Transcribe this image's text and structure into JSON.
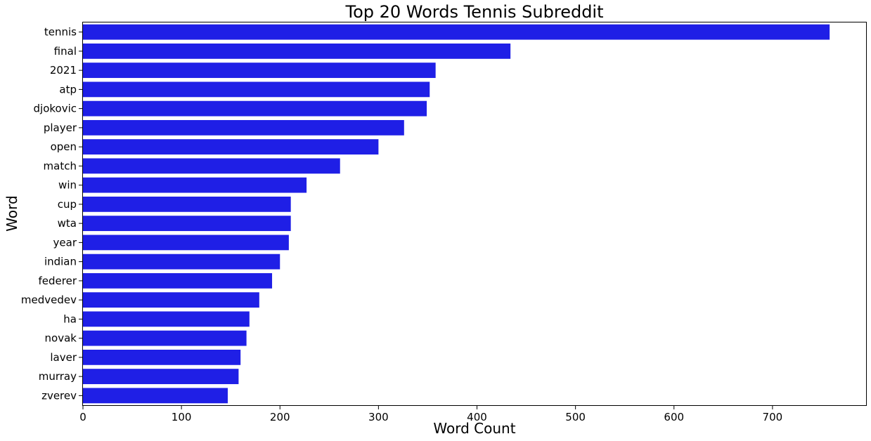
{
  "chart_data": {
    "type": "bar",
    "orientation": "horizontal",
    "title": "Top 20 Words Tennis Subreddit",
    "xlabel": "Word Count",
    "ylabel": "Word",
    "categories": [
      "tennis",
      "final",
      "2021",
      "atp",
      "djokovic",
      "player",
      "open",
      "match",
      "win",
      "cup",
      "wta",
      "year",
      "indian",
      "federer",
      "medvedev",
      "ha",
      "novak",
      "laver",
      "murray",
      "zverev"
    ],
    "values": [
      758,
      434,
      358,
      352,
      349,
      326,
      300,
      261,
      227,
      211,
      211,
      209,
      200,
      192,
      179,
      169,
      166,
      160,
      158,
      147
    ],
    "xlim": [
      0,
      795
    ],
    "xticks": [
      0,
      100,
      200,
      300,
      400,
      500,
      600,
      700
    ],
    "bar_color": "#1f1fe6",
    "grid": false,
    "legend": "none"
  }
}
